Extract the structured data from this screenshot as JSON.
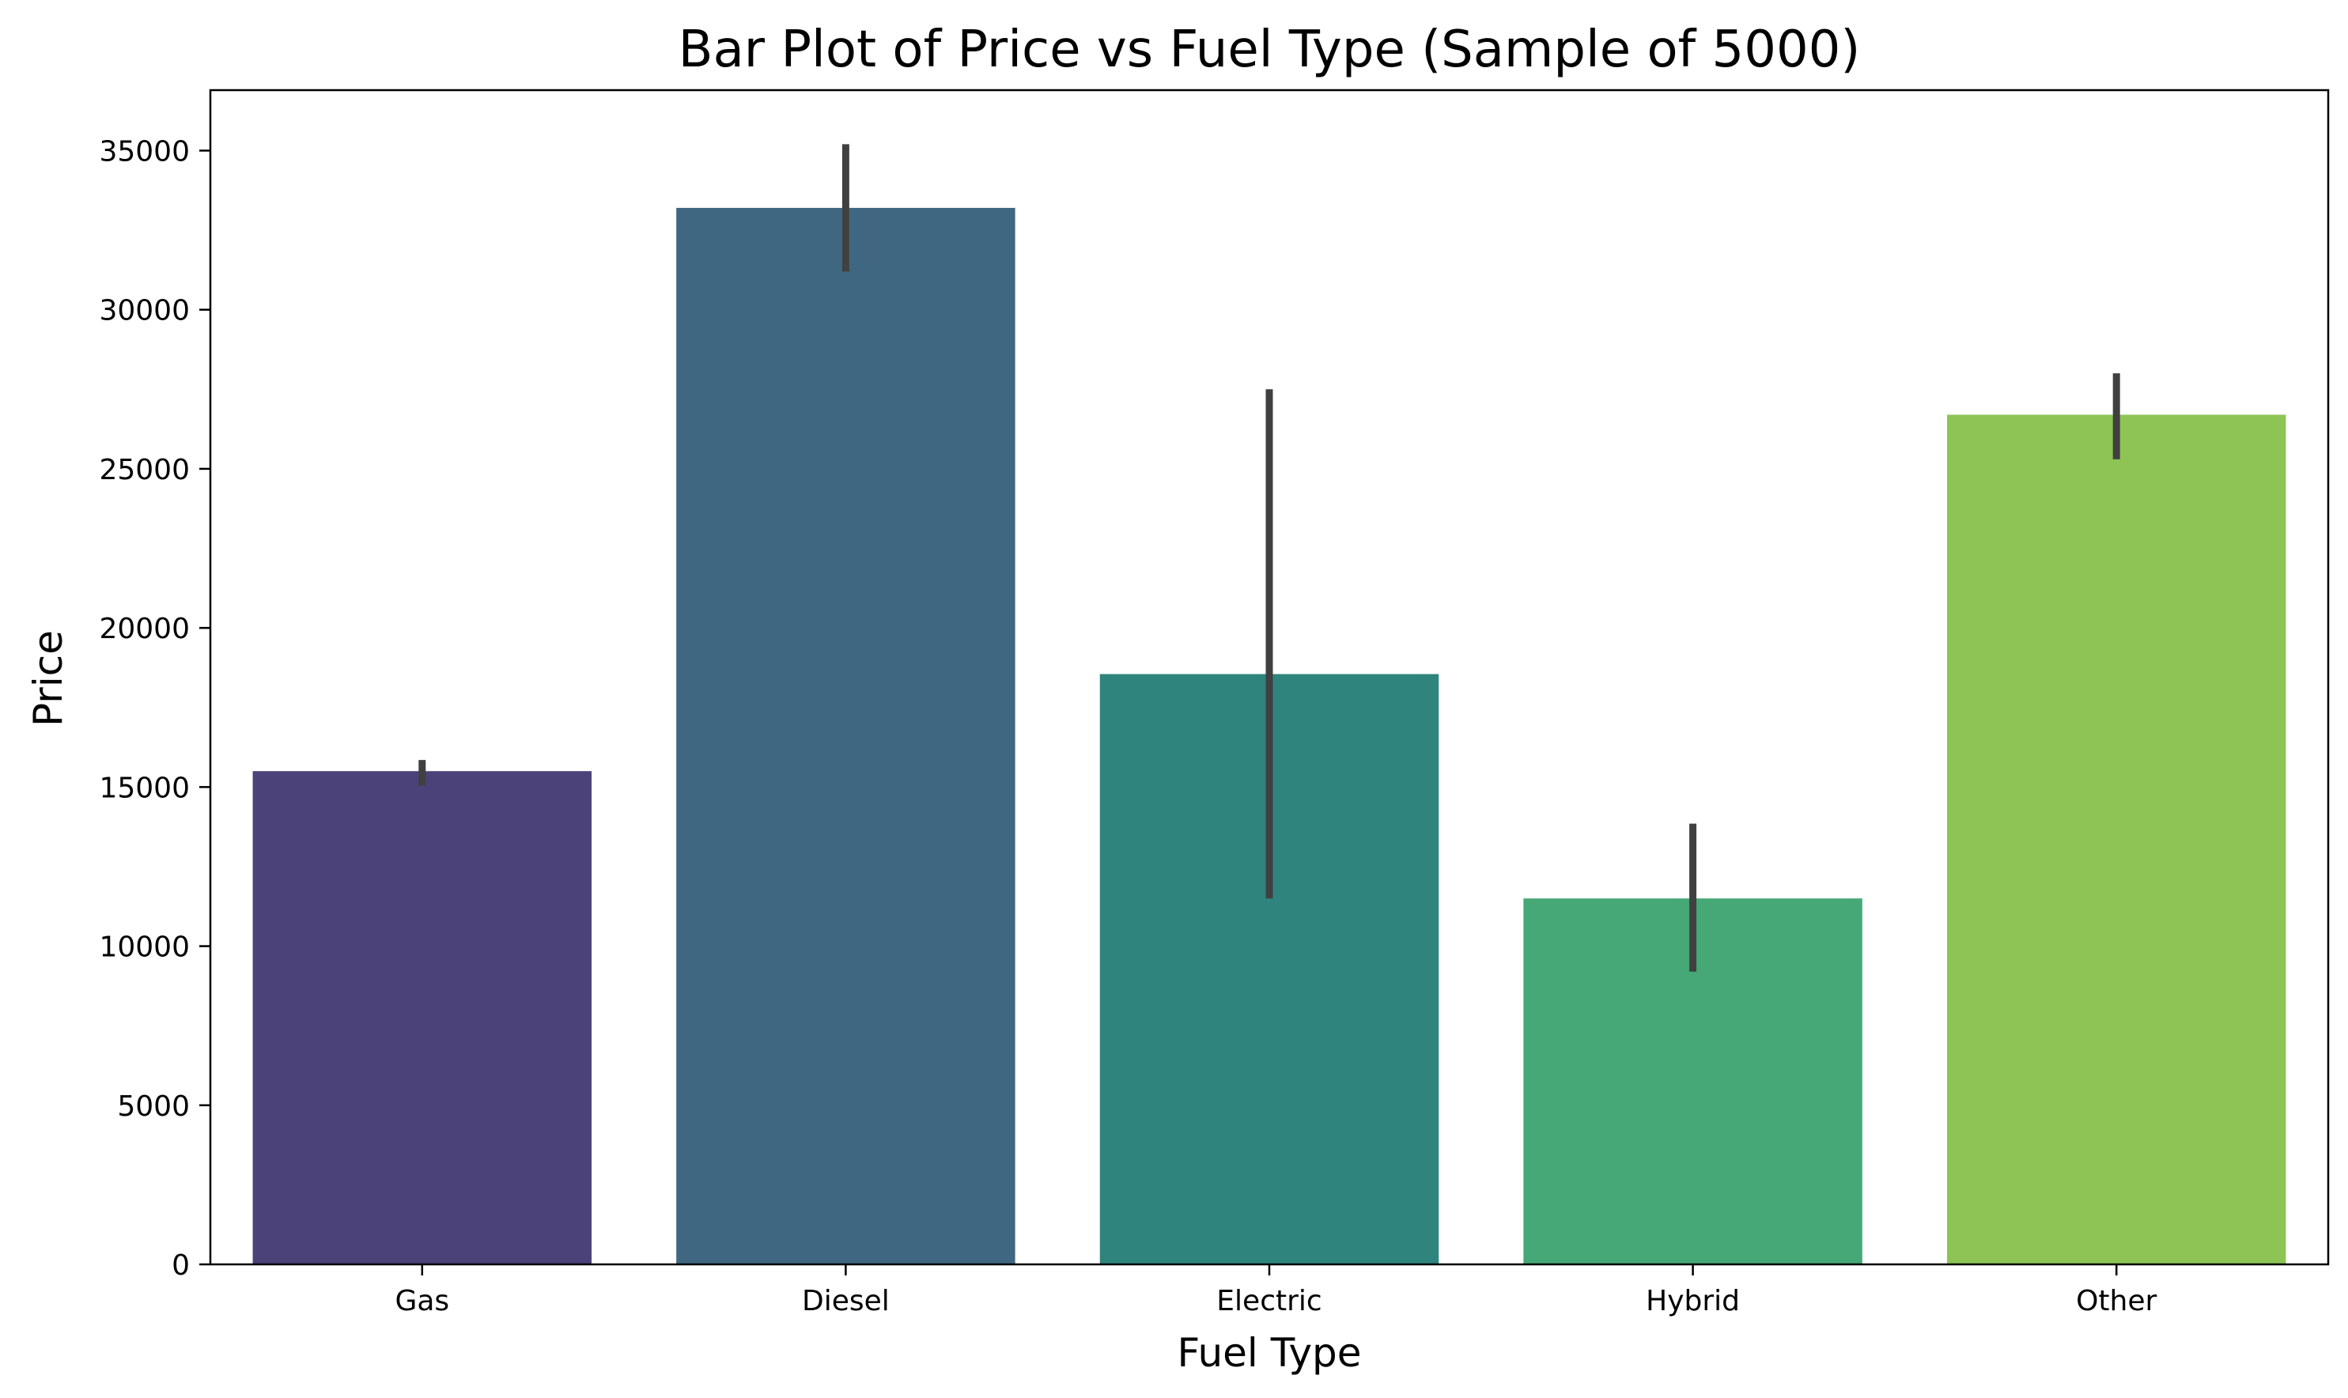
{
  "chart_data": {
    "type": "bar",
    "title": "Bar Plot of Price vs Fuel Type (Sample of 5000)",
    "xlabel": "Fuel Type",
    "ylabel": "Price",
    "categories": [
      "Gas",
      "Diesel",
      "Electric",
      "Hybrid",
      "Other"
    ],
    "values": [
      15500,
      33200,
      18550,
      11500,
      26700
    ],
    "error_low": [
      15050,
      31200,
      11500,
      9200,
      25300
    ],
    "error_high": [
      15850,
      35200,
      27500,
      13850,
      28000
    ],
    "colors": [
      "#4b4279",
      "#3f6782",
      "#2f847d",
      "#45a876",
      "#8dc455"
    ],
    "error_color": "#404040",
    "ylim": [
      0,
      36900
    ],
    "yticks": [
      0,
      5000,
      10000,
      15000,
      20000,
      25000,
      30000,
      35000
    ],
    "grid": false
  }
}
